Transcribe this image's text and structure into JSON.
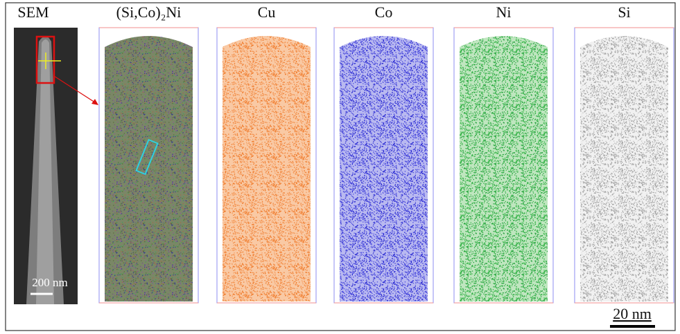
{
  "figure": {
    "panels": [
      {
        "label": "SEM",
        "scale_bar": "200 nm"
      },
      {
        "label": "(Si,Co)₂Ni"
      },
      {
        "label": "Cu"
      },
      {
        "label": "Co"
      },
      {
        "label": "Ni"
      },
      {
        "label": "Si"
      }
    ],
    "scale_bar": "20 nm"
  }
}
